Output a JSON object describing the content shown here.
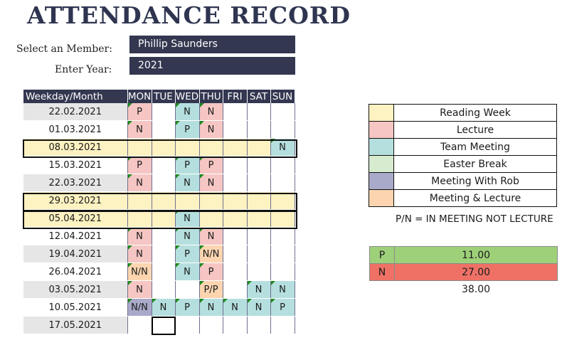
{
  "title": "ATTENDANCE RECORD",
  "form": {
    "member_label": "Select an Member:",
    "member_value": "Phillip Saunders",
    "year_label": "Enter Year:",
    "year_value": "2021"
  },
  "table": {
    "headers": [
      "Weekday/Month",
      "MON",
      "TUE",
      "WED",
      "THU",
      "FRI",
      "SAT",
      "SUN"
    ],
    "rows": [
      {
        "date": "22.02.2021",
        "cells": [
          "P",
          "",
          "N",
          "N",
          "",
          "",
          ""
        ]
      },
      {
        "date": "01.03.2021",
        "cells": [
          "N",
          "",
          "P",
          "N",
          "",
          "",
          ""
        ]
      },
      {
        "date": "08.03.2021",
        "cells": [
          "",
          "",
          "",
          "",
          "",
          "",
          "N"
        ]
      },
      {
        "date": "15.03.2021",
        "cells": [
          "P",
          "",
          "P",
          "P",
          "",
          "",
          ""
        ]
      },
      {
        "date": "22.03.2021",
        "cells": [
          "N",
          "",
          "N",
          "N",
          "",
          "",
          ""
        ]
      },
      {
        "date": "29.03.2021",
        "cells": [
          "",
          "",
          "",
          "",
          "",
          "",
          ""
        ]
      },
      {
        "date": "05.04.2021",
        "cells": [
          "",
          "",
          "N",
          "",
          "",
          "",
          ""
        ]
      },
      {
        "date": "12.04.2021",
        "cells": [
          "N",
          "",
          "N",
          "N",
          "",
          "",
          ""
        ]
      },
      {
        "date": "19.04.2021",
        "cells": [
          "N",
          "",
          "P",
          "N/N",
          "",
          "",
          ""
        ]
      },
      {
        "date": "26.04.2021",
        "cells": [
          "N/N",
          "",
          "N",
          "P",
          "",
          "",
          ""
        ]
      },
      {
        "date": "03.05.2021",
        "cells": [
          "N",
          "",
          "",
          "P/P",
          "",
          "N",
          "N"
        ]
      },
      {
        "date": "10.05.2021",
        "cells": [
          "N/N",
          "N",
          "P",
          "N",
          "N",
          "N",
          "P"
        ]
      },
      {
        "date": "17.05.2021",
        "cells": [
          "",
          "",
          "",
          "",
          "",
          "",
          ""
        ]
      }
    ]
  },
  "legend": [
    {
      "label": "Reading Week",
      "color": "#fdf2c1"
    },
    {
      "label": "Lecture",
      "color": "#f5c6c3"
    },
    {
      "label": "Team Meeting",
      "color": "#b5dfde"
    },
    {
      "label": "Easter Break",
      "color": "#d7ebcf"
    },
    {
      "label": "Meeting With Rob",
      "color": "#a9a9c9"
    },
    {
      "label": "Meeting & Lecture",
      "color": "#fcd5b0"
    }
  ],
  "note": "P/N = IN MEETING NOT LECTURE",
  "totals": {
    "p_label": "P",
    "p_value": "11.00",
    "p_color": "#9ed07a",
    "n_label": "N",
    "n_value": "27.00",
    "n_color": "#ef7166",
    "total": "38.00"
  }
}
